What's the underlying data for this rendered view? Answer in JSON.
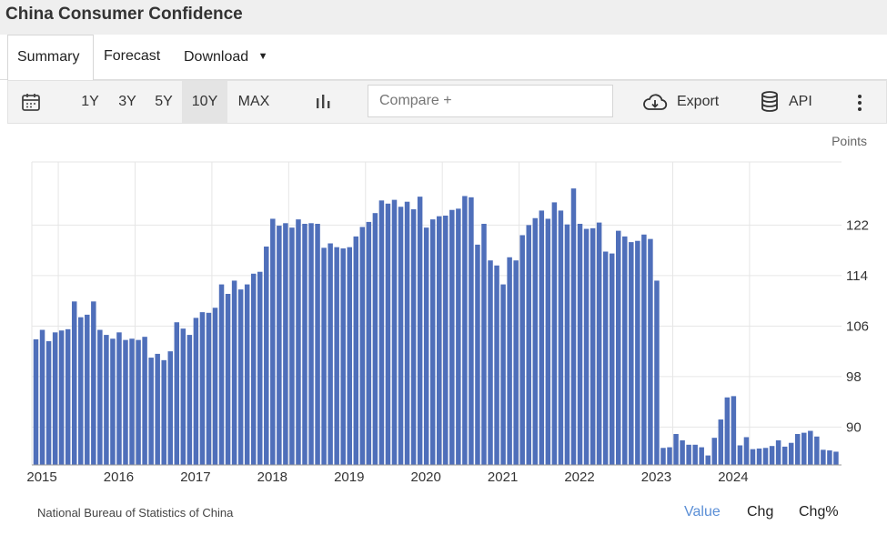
{
  "title": "China Consumer Confidence",
  "tabs": [
    {
      "label": "Summary",
      "active": true
    },
    {
      "label": "Forecast",
      "active": false
    },
    {
      "label": "Download",
      "active": false,
      "dropdown": true
    }
  ],
  "toolbar": {
    "ranges": [
      "1Y",
      "3Y",
      "5Y",
      "10Y",
      "MAX"
    ],
    "active_range": "10Y",
    "compare_placeholder": "Compare +",
    "export_label": "Export",
    "api_label": "API"
  },
  "footer": {
    "source": "National Bureau of Statistics of China",
    "modes": [
      "Value",
      "Chg",
      "Chg%"
    ],
    "active_mode": "Value"
  },
  "colors": {
    "bar": "#4f6fba",
    "grid": "#e6e6e6",
    "active": "#5b8fd6"
  },
  "chart_data": {
    "type": "bar",
    "title": "",
    "ylabel": "Points",
    "xlabel": "",
    "ylim": [
      84,
      132
    ],
    "yticks": [
      90,
      98,
      106,
      114,
      122
    ],
    "xticks": [
      "2015",
      "2016",
      "2017",
      "2018",
      "2019",
      "2020",
      "2021",
      "2022",
      "2023",
      "2024"
    ],
    "start": "2014-09",
    "grid": true,
    "values": [
      103.9,
      105.4,
      103.6,
      105.0,
      105.3,
      105.5,
      109.9,
      107.4,
      107.8,
      109.9,
      105.4,
      104.6,
      104.0,
      105.0,
      103.8,
      104.0,
      103.8,
      104.3,
      101.0,
      101.6,
      100.6,
      102.0,
      106.6,
      105.6,
      104.6,
      107.3,
      108.2,
      108.1,
      108.9,
      112.6,
      111.1,
      113.2,
      111.8,
      112.6,
      114.3,
      114.6,
      118.6,
      123.0,
      121.9,
      122.3,
      121.6,
      122.9,
      122.2,
      122.3,
      122.2,
      118.4,
      119.1,
      118.5,
      118.3,
      118.5,
      120.2,
      121.7,
      122.5,
      123.9,
      125.9,
      125.4,
      126.0,
      124.9,
      125.7,
      124.5,
      126.5,
      121.6,
      122.9,
      123.4,
      123.5,
      124.4,
      124.6,
      126.6,
      126.4,
      118.9,
      122.2,
      116.4,
      115.6,
      112.6,
      116.9,
      116.4,
      120.4,
      122.0,
      123.1,
      124.3,
      123.0,
      125.6,
      124.3,
      122.1,
      127.8,
      122.2,
      121.4,
      121.5,
      122.4,
      117.8,
      117.5,
      121.1,
      120.2,
      119.3,
      119.5,
      120.5,
      119.8,
      113.2,
      86.7,
      86.8,
      88.9,
      87.9,
      87.2,
      87.2,
      86.8,
      85.5,
      88.3,
      91.2,
      94.7,
      94.9,
      87.1,
      88.4,
      86.5,
      86.6,
      86.7,
      87.0,
      87.9,
      86.9,
      87.5,
      88.9,
      89.1,
      89.4,
      88.5,
      86.4,
      86.3,
      86.1
    ]
  }
}
